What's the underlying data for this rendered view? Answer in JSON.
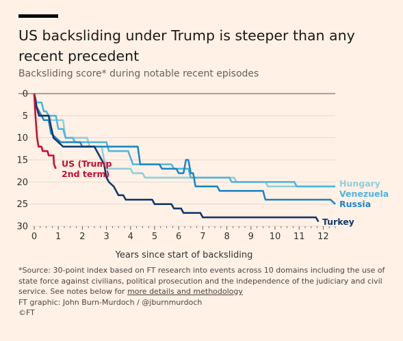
{
  "title": "US backsliding under Trump is steeper than any recent precedent",
  "subtitle": "Backsliding score* during notable recent episodes",
  "footer": {
    "source_text": "*Source: 30-point index based on FT research into events across 10 domains including the use of state force against civilians, political prosecution and the independence of the judiciary and civil service. See notes below for ",
    "source_link": "more details and methodology",
    "credit": "FT graphic: John Burn-Murdoch / @jburnmurdoch",
    "copyright": "©FT"
  },
  "chart_data": {
    "type": "line",
    "title": "US backsliding under Trump is steeper than any recent precedent",
    "subtitle": "Backsliding score* during notable recent episodes",
    "xlabel": "Years since start of backsliding",
    "ylabel": "",
    "xlim": [
      0,
      12.5
    ],
    "ylim": [
      0,
      30
    ],
    "y_inverted": true,
    "xticks": [
      0,
      1,
      2,
      3,
      4,
      5,
      6,
      7,
      8,
      9,
      10,
      11,
      12
    ],
    "yticks": [
      0,
      5,
      10,
      15,
      20,
      25,
      30
    ],
    "grid": "horizontal",
    "legend": "direct labels at line ends",
    "series": [
      {
        "name": "Hungary",
        "label": "Hungary",
        "color": "#93cdd9",
        "points": [
          [
            0,
            0
          ],
          [
            0.1,
            3
          ],
          [
            0.2,
            5
          ],
          [
            0.6,
            5
          ],
          [
            0.7,
            6
          ],
          [
            1.2,
            6
          ],
          [
            1.3,
            10
          ],
          [
            2.2,
            10
          ],
          [
            2.3,
            12
          ],
          [
            2.8,
            12
          ],
          [
            2.9,
            15
          ],
          [
            3,
            16
          ],
          [
            3,
            17
          ],
          [
            4,
            17
          ],
          [
            4.1,
            18
          ],
          [
            4.5,
            18
          ],
          [
            4.6,
            19
          ],
          [
            8.3,
            19
          ],
          [
            8.4,
            20
          ],
          [
            9.6,
            20
          ],
          [
            9.7,
            21
          ],
          [
            12.5,
            21
          ]
        ]
      },
      {
        "name": "Venezuela",
        "label": "Venezuela",
        "color": "#4fb4de",
        "points": [
          [
            0,
            0
          ],
          [
            0.1,
            2
          ],
          [
            0.3,
            2
          ],
          [
            0.4,
            4
          ],
          [
            0.5,
            4
          ],
          [
            0.6,
            5
          ],
          [
            0.9,
            5
          ],
          [
            1,
            8
          ],
          [
            1.2,
            8
          ],
          [
            1.3,
            10
          ],
          [
            1.6,
            10
          ],
          [
            1.7,
            11
          ],
          [
            3,
            11
          ],
          [
            3.1,
            13
          ],
          [
            3.9,
            13
          ],
          [
            4.1,
            16
          ],
          [
            5.7,
            16
          ],
          [
            5.8,
            17
          ],
          [
            6.4,
            17
          ],
          [
            6.5,
            19
          ],
          [
            8.1,
            19
          ],
          [
            8.2,
            20
          ],
          [
            10.8,
            20
          ],
          [
            10.9,
            21
          ],
          [
            12.5,
            21
          ]
        ]
      },
      {
        "name": "Russia",
        "label": "Russia",
        "color": "#1f85c3",
        "points": [
          [
            0,
            0
          ],
          [
            0.1,
            3
          ],
          [
            0.3,
            5
          ],
          [
            0.4,
            6
          ],
          [
            0.6,
            6
          ],
          [
            0.7,
            9
          ],
          [
            0.9,
            10
          ],
          [
            1.1,
            11
          ],
          [
            1.9,
            11
          ],
          [
            2,
            12
          ],
          [
            4.3,
            12
          ],
          [
            4.4,
            16
          ],
          [
            5.2,
            16
          ],
          [
            5.3,
            17
          ],
          [
            5.9,
            17
          ],
          [
            6,
            18
          ],
          [
            6.2,
            18
          ],
          [
            6.3,
            15
          ],
          [
            6.4,
            15
          ],
          [
            6.5,
            18
          ],
          [
            6.6,
            18
          ],
          [
            6.7,
            21
          ],
          [
            7.6,
            21
          ],
          [
            7.7,
            22
          ],
          [
            9.5,
            22
          ],
          [
            9.6,
            24
          ],
          [
            12.3,
            24
          ],
          [
            12.5,
            25
          ]
        ]
      },
      {
        "name": "Turkey",
        "label": "Turkey",
        "color": "#12376e",
        "points": [
          [
            0,
            0
          ],
          [
            0.1,
            3
          ],
          [
            0.2,
            5
          ],
          [
            0.6,
            5
          ],
          [
            0.8,
            10
          ],
          [
            1,
            11
          ],
          [
            1.2,
            12
          ],
          [
            2.5,
            12
          ],
          [
            2.6,
            13
          ],
          [
            2.8,
            15
          ],
          [
            2.9,
            16
          ],
          [
            3,
            19
          ],
          [
            3.1,
            20
          ],
          [
            3.3,
            21
          ],
          [
            3.5,
            23
          ],
          [
            3.7,
            23
          ],
          [
            3.8,
            24
          ],
          [
            4.9,
            24
          ],
          [
            5,
            25
          ],
          [
            5.7,
            25
          ],
          [
            5.8,
            26
          ],
          [
            6.1,
            26
          ],
          [
            6.2,
            27
          ],
          [
            6.9,
            27
          ],
          [
            7,
            28
          ],
          [
            11.7,
            28
          ],
          [
            11.8,
            29
          ]
        ]
      },
      {
        "name": "US (Trump 2nd term)",
        "label": "US (Trump 2nd term)",
        "label_lines": [
          "US (Trump",
          "2nd term)"
        ],
        "color": "#cc0a2e",
        "points": [
          [
            0,
            0
          ],
          [
            0.05,
            5
          ],
          [
            0.12,
            10
          ],
          [
            0.18,
            12
          ],
          [
            0.3,
            12
          ],
          [
            0.35,
            13
          ],
          [
            0.55,
            13
          ],
          [
            0.6,
            14
          ],
          [
            0.8,
            14
          ],
          [
            0.82,
            16
          ],
          [
            0.9,
            17
          ]
        ]
      }
    ]
  }
}
